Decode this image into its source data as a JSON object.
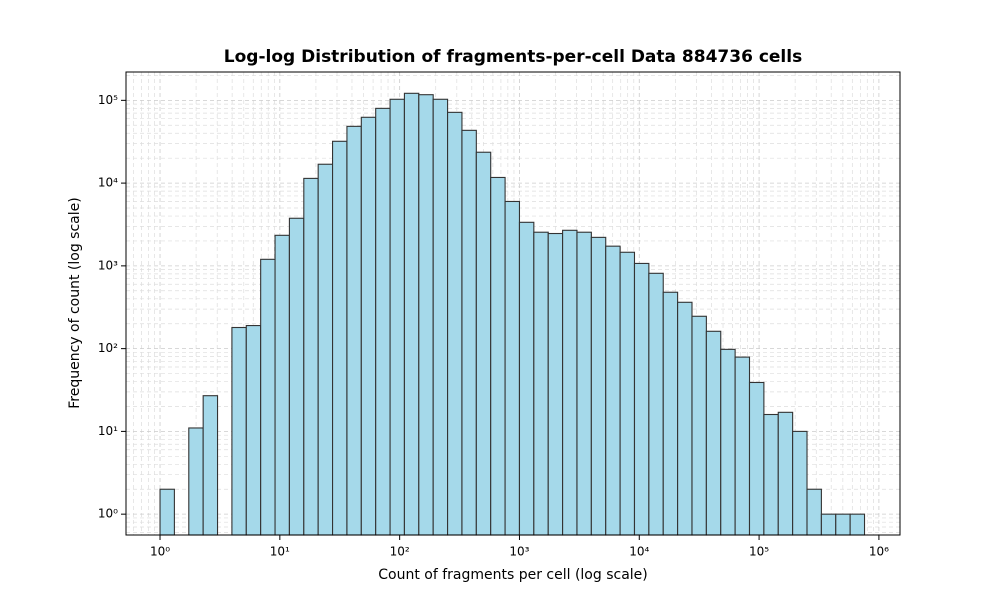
{
  "chart_data": {
    "type": "histogram",
    "title": "Log-log Distribution of fragments-per-cell Data 884736 cells",
    "x_label": "Count of fragments per cell (log scale)",
    "y_label": "Frequency of count (log scale)",
    "bins": [
      1,
      1.318,
      1.738,
      2.291,
      3.02,
      3.981,
      5.248,
      6.918,
      9.12,
      12.02,
      15.85,
      20.89,
      27.54,
      36.31,
      47.86,
      63.1,
      83.18,
      109.6,
      144.5,
      190.5,
      251.2,
      331.1,
      436.5,
      575.4,
      758.6,
      1000,
      1318,
      1738,
      2291,
      3020,
      3981,
      5248,
      6918,
      9120,
      12023,
      15849,
      20893,
      27542,
      36308,
      47863,
      63096,
      83176,
      109648,
      144544,
      190546,
      251189,
      331131,
      436516,
      575440,
      758578
    ],
    "values": [
      2,
      0,
      11,
      27,
      0,
      180,
      190,
      1200,
      2340,
      3760,
      11400,
      16900,
      32000,
      48500,
      62400,
      80000,
      103000,
      121600,
      117000,
      103000,
      71600,
      43400,
      23600,
      11700,
      6000,
      3360,
      2550,
      2460,
      2690,
      2550,
      2210,
      1730,
      1460,
      1070,
      813,
      480,
      363,
      246,
      162,
      98,
      79,
      39,
      16,
      17,
      10,
      2,
      1,
      1,
      1
    ],
    "color": "#a5d9ea",
    "edgecolor": "#333333",
    "xscale": "log",
    "yscale": "log",
    "xlim": [
      0.52,
      1500000
    ],
    "ylim": [
      0.56,
      220000
    ],
    "xticks": [
      {
        "value": 1,
        "label": "10⁰"
      },
      {
        "value": 10,
        "label": "10¹"
      },
      {
        "value": 100,
        "label": "10²"
      },
      {
        "value": 1000,
        "label": "10³"
      },
      {
        "value": 10000,
        "label": "10⁴"
      },
      {
        "value": 100000,
        "label": "10⁵"
      },
      {
        "value": 1000000,
        "label": "10⁶"
      }
    ],
    "yticks": [
      {
        "value": 1,
        "label": "10⁰"
      },
      {
        "value": 10,
        "label": "10¹"
      },
      {
        "value": 100,
        "label": "10²"
      },
      {
        "value": 1000,
        "label": "10³"
      },
      {
        "value": 10000,
        "label": "10⁴"
      },
      {
        "value": 100000,
        "label": "10⁵"
      }
    ],
    "grid": true
  }
}
